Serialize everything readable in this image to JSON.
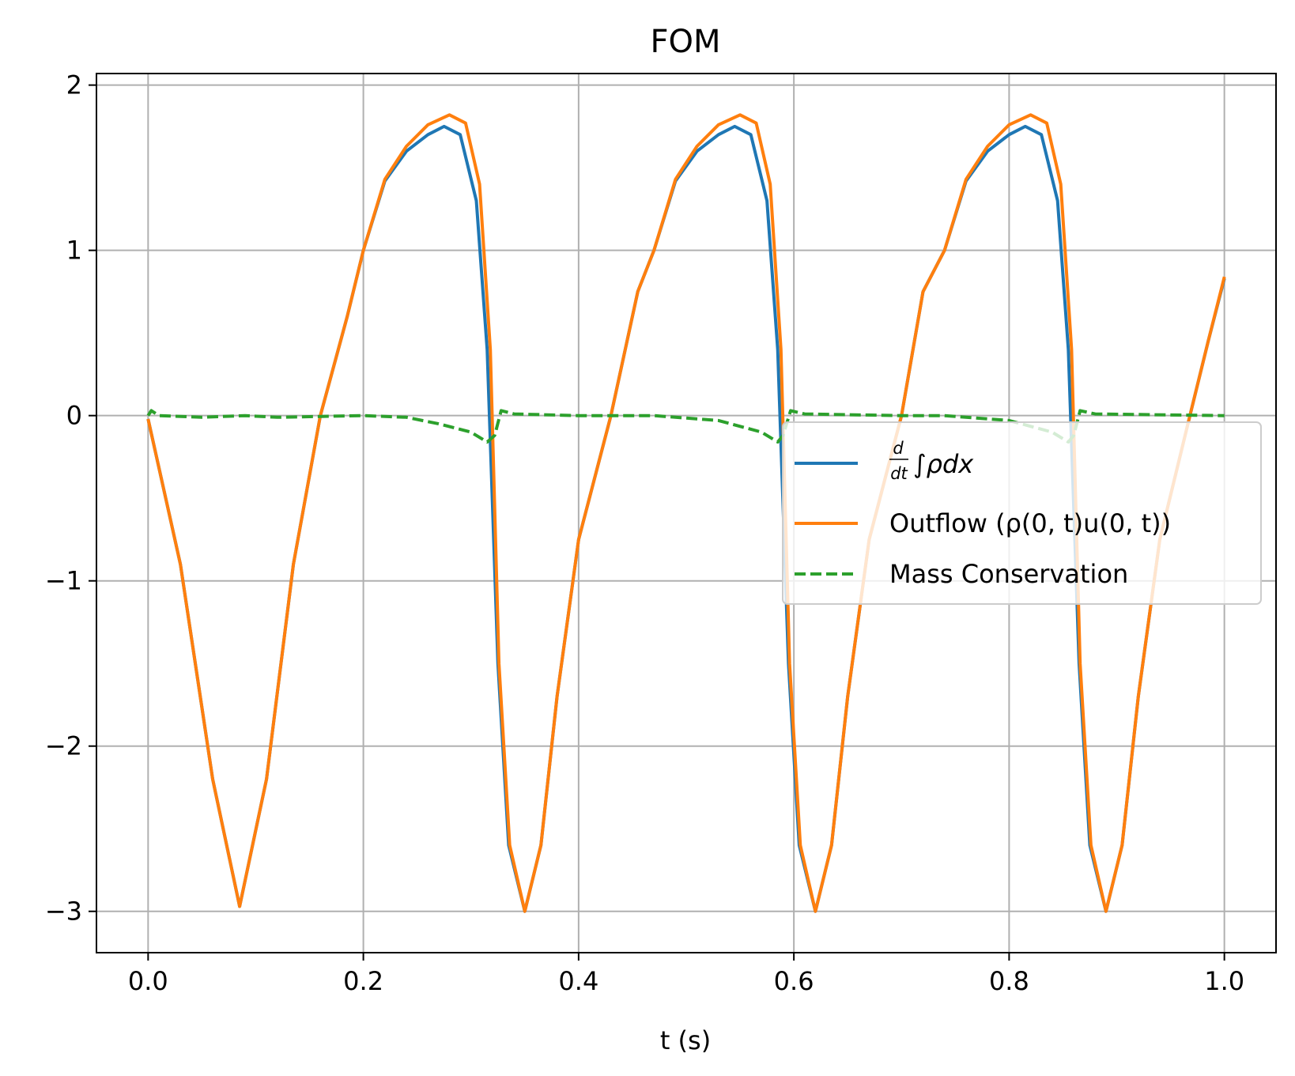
{
  "chart_data": {
    "type": "line",
    "title": "FOM",
    "xlabel": "t (s)",
    "ylabel": "",
    "xlim": [
      -0.048,
      1.048
    ],
    "ylim": [
      -3.25,
      2.07
    ],
    "grid": true,
    "legend_position": "center-right",
    "x_ticks": [
      0.0,
      0.2,
      0.4,
      0.6,
      0.8,
      1.0
    ],
    "x_tick_labels": [
      "0.0",
      "0.2",
      "0.4",
      "0.6",
      "0.8",
      "1.0"
    ],
    "y_ticks": [
      2,
      1,
      0,
      -1,
      -2,
      -3
    ],
    "y_tick_labels": [
      "2",
      "1",
      "0",
      "−1",
      "−2",
      "−3"
    ],
    "series": [
      {
        "name": "d/dt ∫ρdx",
        "color": "#1f77b4",
        "style": "solid",
        "points": [
          [
            0.0,
            -0.02
          ],
          [
            0.03,
            -0.9
          ],
          [
            0.06,
            -2.2
          ],
          [
            0.085,
            -2.97
          ],
          [
            0.11,
            -2.2
          ],
          [
            0.135,
            -0.9
          ],
          [
            0.16,
            0.0
          ],
          [
            0.185,
            0.6
          ],
          [
            0.2,
            1.0
          ],
          [
            0.22,
            1.42
          ],
          [
            0.24,
            1.6
          ],
          [
            0.26,
            1.7
          ],
          [
            0.275,
            1.75
          ],
          [
            0.29,
            1.7
          ],
          [
            0.305,
            1.3
          ],
          [
            0.315,
            0.4
          ],
          [
            0.325,
            -1.5
          ],
          [
            0.335,
            -2.6
          ],
          [
            0.35,
            -3.0
          ],
          [
            0.365,
            -2.6
          ],
          [
            0.38,
            -1.7
          ],
          [
            0.4,
            -0.75
          ],
          [
            0.43,
            0.0
          ],
          [
            0.455,
            0.75
          ],
          [
            0.47,
            1.0
          ],
          [
            0.49,
            1.42
          ],
          [
            0.51,
            1.6
          ],
          [
            0.53,
            1.7
          ],
          [
            0.545,
            1.75
          ],
          [
            0.56,
            1.7
          ],
          [
            0.575,
            1.3
          ],
          [
            0.585,
            0.4
          ],
          [
            0.595,
            -1.5
          ],
          [
            0.605,
            -2.6
          ],
          [
            0.62,
            -3.0
          ],
          [
            0.635,
            -2.6
          ],
          [
            0.65,
            -1.7
          ],
          [
            0.67,
            -0.75
          ],
          [
            0.7,
            0.0
          ],
          [
            0.72,
            0.75
          ],
          [
            0.74,
            1.0
          ],
          [
            0.76,
            1.42
          ],
          [
            0.78,
            1.6
          ],
          [
            0.8,
            1.7
          ],
          [
            0.815,
            1.75
          ],
          [
            0.83,
            1.7
          ],
          [
            0.845,
            1.3
          ],
          [
            0.855,
            0.4
          ],
          [
            0.865,
            -1.5
          ],
          [
            0.875,
            -2.6
          ],
          [
            0.89,
            -3.0
          ],
          [
            0.905,
            -2.6
          ],
          [
            0.92,
            -1.7
          ],
          [
            0.94,
            -0.75
          ],
          [
            0.968,
            0.0
          ],
          [
            0.985,
            0.45
          ],
          [
            1.0,
            0.83
          ]
        ]
      },
      {
        "name": "Outflow (ρ(0, t)u(0, t))",
        "color": "#ff7f0e",
        "style": "solid",
        "points": [
          [
            0.0,
            -0.02
          ],
          [
            0.03,
            -0.9
          ],
          [
            0.06,
            -2.2
          ],
          [
            0.085,
            -2.97
          ],
          [
            0.11,
            -2.2
          ],
          [
            0.135,
            -0.9
          ],
          [
            0.16,
            0.0
          ],
          [
            0.185,
            0.6
          ],
          [
            0.2,
            1.0
          ],
          [
            0.22,
            1.43
          ],
          [
            0.24,
            1.63
          ],
          [
            0.26,
            1.76
          ],
          [
            0.28,
            1.82
          ],
          [
            0.295,
            1.77
          ],
          [
            0.308,
            1.4
          ],
          [
            0.318,
            0.4
          ],
          [
            0.326,
            -1.5
          ],
          [
            0.336,
            -2.6
          ],
          [
            0.35,
            -3.0
          ],
          [
            0.365,
            -2.6
          ],
          [
            0.38,
            -1.7
          ],
          [
            0.4,
            -0.75
          ],
          [
            0.43,
            0.0
          ],
          [
            0.455,
            0.75
          ],
          [
            0.47,
            1.0
          ],
          [
            0.49,
            1.43
          ],
          [
            0.51,
            1.63
          ],
          [
            0.53,
            1.76
          ],
          [
            0.55,
            1.82
          ],
          [
            0.565,
            1.77
          ],
          [
            0.578,
            1.4
          ],
          [
            0.588,
            0.4
          ],
          [
            0.596,
            -1.5
          ],
          [
            0.606,
            -2.6
          ],
          [
            0.62,
            -3.0
          ],
          [
            0.635,
            -2.6
          ],
          [
            0.65,
            -1.7
          ],
          [
            0.67,
            -0.75
          ],
          [
            0.7,
            0.0
          ],
          [
            0.72,
            0.75
          ],
          [
            0.74,
            1.0
          ],
          [
            0.76,
            1.43
          ],
          [
            0.78,
            1.63
          ],
          [
            0.8,
            1.76
          ],
          [
            0.82,
            1.82
          ],
          [
            0.835,
            1.77
          ],
          [
            0.848,
            1.4
          ],
          [
            0.858,
            0.4
          ],
          [
            0.866,
            -1.5
          ],
          [
            0.876,
            -2.6
          ],
          [
            0.89,
            -3.0
          ],
          [
            0.905,
            -2.6
          ],
          [
            0.92,
            -1.7
          ],
          [
            0.94,
            -0.75
          ],
          [
            0.968,
            0.0
          ],
          [
            0.985,
            0.45
          ],
          [
            1.0,
            0.84
          ]
        ]
      },
      {
        "name": "Mass Conservation",
        "color": "#2ca02c",
        "style": "dashed",
        "points": [
          [
            0.0,
            0.0
          ],
          [
            0.003,
            0.03
          ],
          [
            0.01,
            0.0
          ],
          [
            0.05,
            -0.01
          ],
          [
            0.09,
            0.0
          ],
          [
            0.12,
            -0.01
          ],
          [
            0.2,
            0.0
          ],
          [
            0.24,
            -0.01
          ],
          [
            0.27,
            -0.05
          ],
          [
            0.3,
            -0.1
          ],
          [
            0.315,
            -0.16
          ],
          [
            0.322,
            -0.12
          ],
          [
            0.328,
            0.03
          ],
          [
            0.34,
            0.01
          ],
          [
            0.4,
            0.0
          ],
          [
            0.47,
            0.0
          ],
          [
            0.53,
            -0.03
          ],
          [
            0.57,
            -0.1
          ],
          [
            0.585,
            -0.16
          ],
          [
            0.59,
            -0.12
          ],
          [
            0.597,
            0.03
          ],
          [
            0.61,
            0.01
          ],
          [
            0.7,
            0.0
          ],
          [
            0.74,
            0.0
          ],
          [
            0.8,
            -0.03
          ],
          [
            0.84,
            -0.1
          ],
          [
            0.855,
            -0.16
          ],
          [
            0.86,
            -0.12
          ],
          [
            0.866,
            0.03
          ],
          [
            0.88,
            0.01
          ],
          [
            1.0,
            0.0
          ]
        ]
      }
    ],
    "legend": {
      "entries": [
        {
          "label_frac_num": "d",
          "label_frac_den": "dt",
          "label_rest": "∫ρdx"
        },
        {
          "label": "Outflow (ρ(0, t)u(0, t))"
        },
        {
          "label": "Mass Conservation"
        }
      ]
    }
  }
}
